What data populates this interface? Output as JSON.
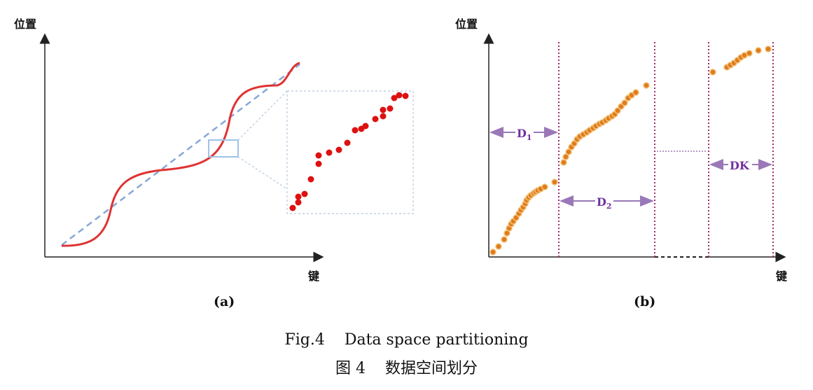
{
  "panel_a": {
    "y_label": "位置",
    "x_label": "键",
    "panel_label": "(a)"
  },
  "panel_b": {
    "y_label": "位置",
    "x_label": "键",
    "panel_label": "(b)",
    "partitions": [
      {
        "name": "D",
        "sub": "1"
      },
      {
        "name": "D",
        "sub": "2"
      },
      {
        "name": "DK",
        "sub": ""
      }
    ]
  },
  "caption": {
    "fig_en": "Fig.4",
    "title_en": "Data space partitioning",
    "fig_zh": "图 4",
    "title_zh": "数据空间划分"
  },
  "colors": {
    "curve": "#e03232",
    "diagonal": "#86a8d4",
    "point_red": "#dd1111",
    "point_orange": "#e07b1b",
    "partition": "#a52a6a",
    "arrow": "#9a78b8",
    "label": "#7030a0"
  }
}
